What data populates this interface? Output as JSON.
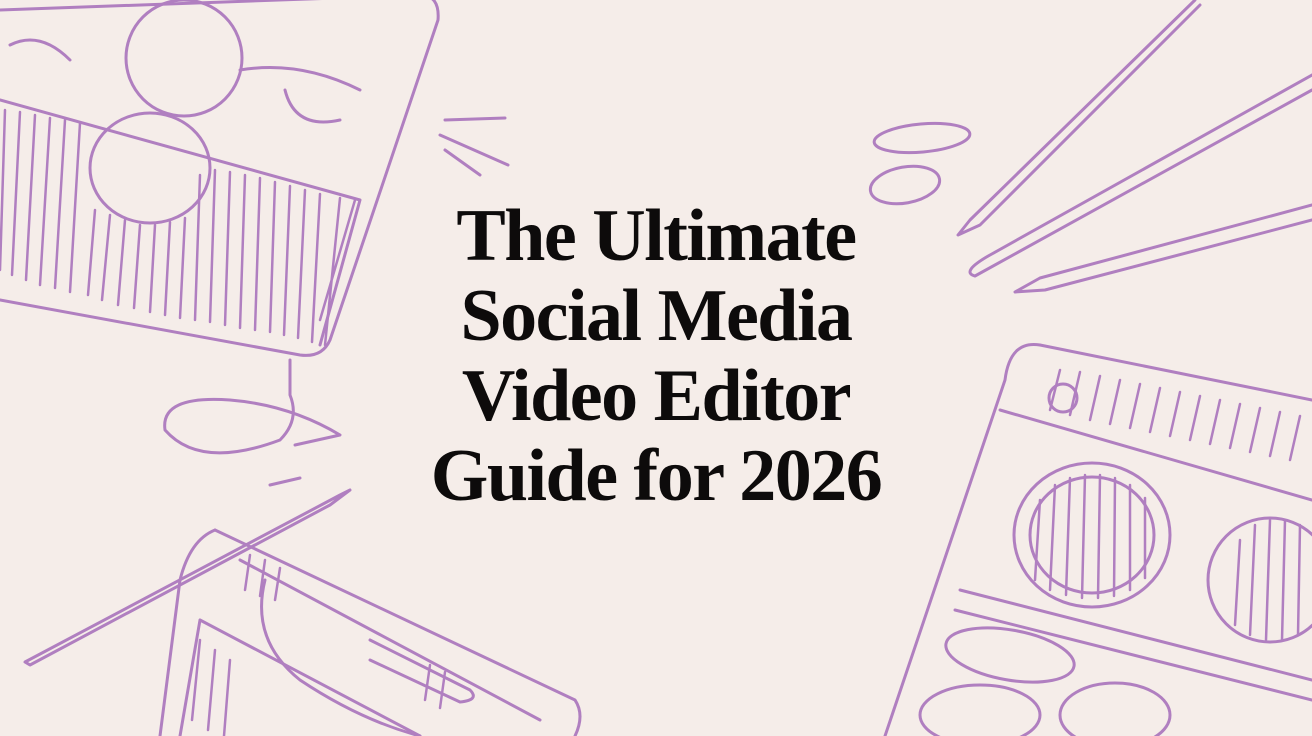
{
  "colors": {
    "background": "#f5ede9",
    "sketch": "#b07fc0",
    "title": "#0d0b0b"
  },
  "title": {
    "lines": [
      "The Ultimate",
      "Social Media",
      "Video Editor",
      "Guide for 2026"
    ]
  }
}
